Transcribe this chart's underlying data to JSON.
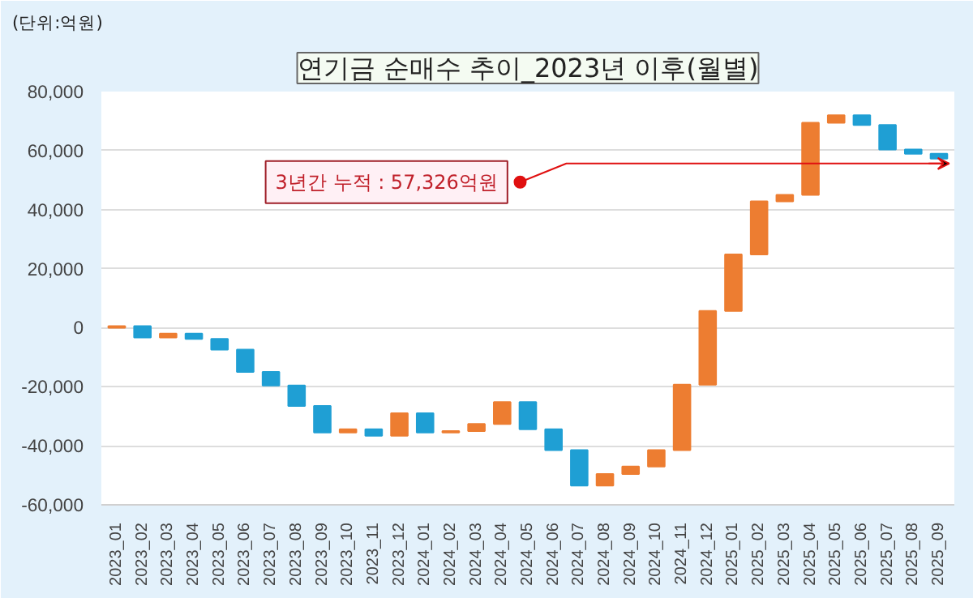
{
  "chart_data": {
    "type": "bar",
    "title": "연기금 순매수 추이_2023년 이후(월별)",
    "ylabel": "(단위:억원)",
    "categories": [
      "2023_01",
      "2023_02",
      "2023_03",
      "2023_04",
      "2023_05",
      "2023_06",
      "2023_07",
      "2023_08",
      "2023_09",
      "2023_10",
      "2023_11",
      "2023_12",
      "2024_01",
      "2024_02",
      "2024_03",
      "2024_04",
      "2024_05",
      "2024_06",
      "2024_07",
      "2024_08",
      "2024_09",
      "2024_10",
      "2024_11",
      "2024_12",
      "2025_01",
      "2025_02",
      "2025_03",
      "2025_04",
      "2025_05",
      "2025_06",
      "2025_07",
      "2025_08",
      "2025_09"
    ],
    "values": [
      500,
      -3800,
      1300,
      -1800,
      -3600,
      -7600,
      -4600,
      -6900,
      -9000,
      1100,
      -2200,
      7600,
      -6500,
      500,
      2400,
      7400,
      -9200,
      -7100,
      -12000,
      3900,
      2600,
      5500,
      22200,
      25000,
      19100,
      18000,
      2200,
      24400,
      2600,
      -3300,
      -8300,
      -1500,
      -1600
    ],
    "base": [
      0,
      500,
      -3300,
      -2000,
      -3800,
      -7400,
      -15000,
      -19600,
      -26500,
      -35500,
      -34400,
      -36600,
      -29000,
      -35500,
      -35000,
      -32600,
      -25200,
      -34400,
      -41500,
      -53500,
      -49600,
      -47000,
      -41500,
      -19300,
      5700,
      24800,
      42800,
      45000,
      69400,
      72000,
      68700,
      60400,
      58900
    ],
    "colors": [
      "#ed7d31",
      "#1f9fd4",
      "#ed7d31",
      "#1f9fd4",
      "#1f9fd4",
      "#1f9fd4",
      "#1f9fd4",
      "#1f9fd4",
      "#1f9fd4",
      "#ed7d31",
      "#1f9fd4",
      "#ed7d31",
      "#1f9fd4",
      "#ed7d31",
      "#ed7d31",
      "#ed7d31",
      "#1f9fd4",
      "#1f9fd4",
      "#1f9fd4",
      "#ed7d31",
      "#ed7d31",
      "#ed7d31",
      "#ed7d31",
      "#ed7d31",
      "#ed7d31",
      "#ed7d31",
      "#ed7d31",
      "#ed7d31",
      "#ed7d31",
      "#1f9fd4",
      "#1f9fd4",
      "#1f9fd4",
      "#1f9fd4"
    ],
    "ylim": [
      -60000,
      80000
    ],
    "yticks": [
      {
        "value": -60000,
        "label": "-60,000"
      },
      {
        "value": -40000,
        "label": "-40,000"
      },
      {
        "value": -20000,
        "label": "-20,000"
      },
      0,
      {
        "value": 20000,
        "label": "20,000"
      },
      {
        "value": 40000,
        "label": "40,000"
      },
      {
        "value": 60000,
        "label": "60,000"
      },
      {
        "value": 80000,
        "label": "80,000"
      }
    ],
    "grid": "y",
    "annotations": [
      {
        "text": "3년간 누적 : 57,326억원",
        "x": "2025_09",
        "y": 57326
      }
    ]
  }
}
